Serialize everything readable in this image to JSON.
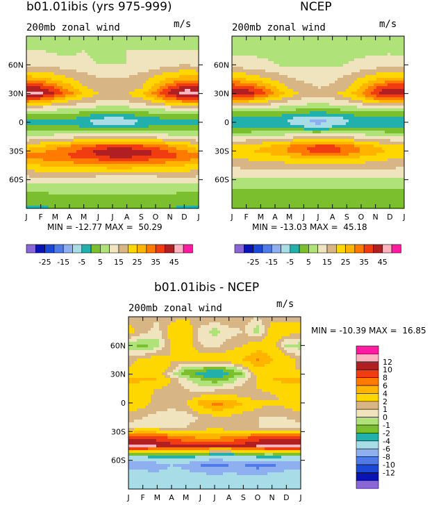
{
  "chart_data": [
    {
      "type": "heatmap",
      "title": "b01.01ibis (yrs 975-999)",
      "subtitle_left": "200mb zonal wind",
      "subtitle_right": "m/s",
      "x_ticks": [
        "J",
        "F",
        "M",
        "A",
        "M",
        "J",
        "J",
        "A",
        "S",
        "O",
        "N",
        "D",
        "J"
      ],
      "y_ticks": [
        "60N",
        "30N",
        "0",
        "30S",
        "60S"
      ],
      "y_tick_values": [
        60,
        30,
        0,
        -30,
        -60
      ],
      "ylim": [
        -90,
        90
      ],
      "stats": "MIN = -12.77 MAX =  50.29",
      "levels": [
        -30,
        -25,
        -20,
        -15,
        -10,
        -5,
        0,
        5,
        10,
        15,
        20,
        25,
        30,
        35,
        40,
        45,
        50
      ],
      "colorbar_labels": [
        "-25",
        "-15",
        "-5",
        "5",
        "15",
        "25",
        "35",
        "45"
      ],
      "colors": [
        "#8a67d6",
        "#0a14b4",
        "#1c48d8",
        "#4f7ae8",
        "#8fb0f0",
        "#a8dce6",
        "#22b0ad",
        "#7bbf2e",
        "#b0e27a",
        "#efe4be",
        "#d8b585",
        "#ffd700",
        "#ffb400",
        "#ff7a00",
        "#f03c10",
        "#b21f22",
        "#ffb3c1",
        "#ff1ca0"
      ],
      "lat_grid": [
        90,
        75,
        60,
        45,
        35,
        30,
        25,
        15,
        5,
        0,
        -5,
        -15,
        -25,
        -30,
        -35,
        -45,
        -55,
        -65,
        -75,
        -90
      ],
      "rows": [
        [
          8,
          8,
          8,
          8,
          8,
          8,
          8,
          8,
          8,
          8,
          8,
          8,
          8
        ],
        [
          10,
          10,
          9,
          9,
          10,
          9,
          9,
          10,
          10,
          10,
          10,
          10,
          10
        ],
        [
          14,
          14,
          13,
          12,
          11,
          10,
          10,
          10,
          11,
          12,
          14,
          15,
          14
        ],
        [
          28,
          27,
          24,
          21,
          18,
          16,
          15,
          16,
          18,
          22,
          26,
          28,
          28
        ],
        [
          43,
          42,
          36,
          28,
          21,
          18,
          16,
          17,
          20,
          28,
          38,
          44,
          43
        ],
        [
          48,
          46,
          40,
          32,
          24,
          20,
          18,
          20,
          24,
          32,
          42,
          48,
          48
        ],
        [
          38,
          36,
          30,
          24,
          20,
          17,
          16,
          17,
          20,
          26,
          34,
          38,
          38
        ],
        [
          14,
          13,
          12,
          11,
          10,
          9,
          9,
          9,
          10,
          11,
          13,
          14,
          14
        ],
        [
          1,
          1,
          2,
          2,
          -2,
          -4,
          -5,
          -4,
          -2,
          0,
          1,
          2,
          1
        ],
        [
          -2,
          -2,
          -1,
          -1,
          -4,
          -8,
          -11,
          -9,
          -5,
          -3,
          -2,
          -2,
          -2
        ],
        [
          1,
          1,
          2,
          1,
          0,
          -2,
          -4,
          -3,
          0,
          1,
          1,
          1,
          1
        ],
        [
          10,
          11,
          12,
          13,
          14,
          14,
          15,
          15,
          14,
          13,
          12,
          11,
          10
        ],
        [
          22,
          24,
          28,
          30,
          34,
          36,
          37,
          37,
          36,
          34,
          30,
          26,
          22
        ],
        [
          27,
          29,
          31,
          33,
          37,
          42,
          44,
          44,
          42,
          39,
          34,
          30,
          27
        ],
        [
          32,
          33,
          35,
          36,
          38,
          40,
          42,
          42,
          41,
          40,
          38,
          35,
          32
        ],
        [
          24,
          25,
          26,
          27,
          28,
          28,
          29,
          29,
          28,
          27,
          26,
          25,
          24
        ],
        [
          16,
          17,
          17,
          17,
          17,
          16,
          16,
          16,
          16,
          16,
          17,
          17,
          16
        ],
        [
          9,
          10,
          10,
          10,
          10,
          9,
          9,
          9,
          9,
          9,
          10,
          10,
          9
        ],
        [
          4,
          4,
          5,
          5,
          5,
          5,
          5,
          5,
          5,
          5,
          5,
          4,
          4
        ],
        [
          -1,
          -1,
          0,
          0,
          0,
          0,
          0,
          0,
          0,
          0,
          0,
          -1,
          -1
        ]
      ]
    },
    {
      "type": "heatmap",
      "title": "NCEP",
      "subtitle_left": "200mb zonal wind",
      "subtitle_right": "m/s",
      "x_ticks": [
        "J",
        "F",
        "M",
        "A",
        "M",
        "J",
        "J",
        "A",
        "S",
        "O",
        "N",
        "D",
        "J"
      ],
      "y_ticks": [
        "60N",
        "30N",
        "0",
        "30S",
        "60S"
      ],
      "y_tick_values": [
        60,
        30,
        0,
        -30,
        -60
      ],
      "ylim": [
        -90,
        90
      ],
      "stats": "MIN = -13.03 MAX =  45.18",
      "levels": [
        -30,
        -25,
        -20,
        -15,
        -10,
        -5,
        0,
        5,
        10,
        15,
        20,
        25,
        30,
        35,
        40,
        45,
        50
      ],
      "colorbar_labels": [
        "-25",
        "-15",
        "-5",
        "5",
        "15",
        "25",
        "35",
        "45"
      ],
      "colors": [
        "#8a67d6",
        "#0a14b4",
        "#1c48d8",
        "#4f7ae8",
        "#8fb0f0",
        "#a8dce6",
        "#22b0ad",
        "#7bbf2e",
        "#b0e27a",
        "#efe4be",
        "#d8b585",
        "#ffd700",
        "#ffb400",
        "#ff7a00",
        "#f03c10",
        "#b21f22",
        "#ffb3c1",
        "#ff1ca0"
      ],
      "lat_grid": [
        90,
        75,
        60,
        45,
        35,
        30,
        25,
        15,
        5,
        0,
        -5,
        -15,
        -25,
        -30,
        -35,
        -45,
        -55,
        -65,
        -75,
        -90
      ],
      "rows": [
        [
          8,
          8,
          8,
          8,
          8,
          8,
          8,
          8,
          8,
          8,
          8,
          8,
          8
        ],
        [
          9,
          9,
          9,
          9,
          9,
          8,
          8,
          9,
          9,
          9,
          9,
          9,
          9
        ],
        [
          12,
          12,
          11,
          10,
          9,
          9,
          9,
          9,
          10,
          11,
          12,
          13,
          12
        ],
        [
          26,
          25,
          22,
          19,
          16,
          14,
          14,
          14,
          17,
          21,
          25,
          26,
          26
        ],
        [
          42,
          40,
          34,
          26,
          20,
          17,
          15,
          16,
          19,
          27,
          36,
          42,
          42
        ],
        [
          44,
          43,
          38,
          30,
          23,
          19,
          17,
          19,
          23,
          30,
          39,
          44,
          44
        ],
        [
          34,
          33,
          28,
          22,
          18,
          15,
          14,
          15,
          18,
          24,
          31,
          34,
          34
        ],
        [
          11,
          11,
          10,
          9,
          8,
          7,
          7,
          7,
          8,
          9,
          10,
          11,
          11
        ],
        [
          -3,
          -3,
          -1,
          -1,
          -4,
          -7,
          -8,
          -7,
          -4,
          -1,
          -1,
          -3,
          -3
        ],
        [
          -5,
          -4,
          -3,
          -3,
          -6,
          -10,
          -12,
          -10,
          -6,
          -3,
          -3,
          -4,
          -5
        ],
        [
          -1,
          -1,
          0,
          0,
          -2,
          -4,
          -6,
          -4,
          -1,
          0,
          0,
          -1,
          -1
        ],
        [
          9,
          10,
          11,
          12,
          13,
          14,
          15,
          15,
          14,
          13,
          11,
          10,
          9
        ],
        [
          22,
          23,
          24,
          26,
          30,
          34,
          36,
          36,
          33,
          28,
          25,
          23,
          22
        ],
        [
          23,
          24,
          26,
          28,
          31,
          35,
          37,
          37,
          35,
          30,
          27,
          24,
          23
        ],
        [
          21,
          22,
          23,
          24,
          26,
          28,
          29,
          29,
          28,
          26,
          24,
          22,
          21
        ],
        [
          16,
          17,
          17,
          17,
          18,
          19,
          19,
          19,
          19,
          18,
          17,
          17,
          16
        ],
        [
          11,
          11,
          12,
          12,
          12,
          12,
          12,
          12,
          12,
          12,
          12,
          11,
          11
        ],
        [
          6,
          6,
          7,
          7,
          7,
          7,
          7,
          7,
          7,
          7,
          7,
          6,
          6
        ],
        [
          3,
          3,
          3,
          3,
          3,
          3,
          3,
          3,
          3,
          3,
          3,
          3,
          3
        ],
        [
          0,
          0,
          0,
          0,
          0,
          0,
          0,
          0,
          0,
          0,
          0,
          0,
          0
        ]
      ]
    },
    {
      "type": "heatmap",
      "title": "b01.01ibis - NCEP",
      "subtitle_left": "200mb zonal wind",
      "subtitle_right": "m/s",
      "x_ticks": [
        "J",
        "F",
        "M",
        "A",
        "M",
        "J",
        "J",
        "A",
        "S",
        "O",
        "N",
        "D",
        "J"
      ],
      "y_ticks": [
        "60N",
        "30N",
        "0",
        "30S",
        "60S"
      ],
      "y_tick_values": [
        60,
        30,
        0,
        -30,
        -60
      ],
      "ylim": [
        -90,
        90
      ],
      "stats": "MIN = -10.39 MAX =  16.85",
      "levels": [
        -14,
        -12,
        -10,
        -8,
        -6,
        -4,
        -2,
        -1,
        0,
        1,
        2,
        4,
        6,
        8,
        10,
        12,
        14
      ],
      "colorbar_labels": [
        "12",
        "10",
        "8",
        "6",
        "4",
        "2",
        "1",
        "0",
        "-1",
        "-2",
        "-4",
        "-6",
        "-8",
        "-10",
        "-12"
      ],
      "colors": [
        "#8a67d6",
        "#0a14b4",
        "#1c48d8",
        "#4f7ae8",
        "#8fb0f0",
        "#a8dce6",
        "#22b0ad",
        "#7bbf2e",
        "#b0e27a",
        "#efe4be",
        "#d8b585",
        "#ffd700",
        "#ffb400",
        "#ff7a00",
        "#f03c10",
        "#b21f22",
        "#ffb3c1",
        "#ff1ca0"
      ],
      "lat_grid": [
        90,
        75,
        60,
        45,
        35,
        30,
        25,
        15,
        5,
        0,
        -5,
        -15,
        -25,
        -30,
        -35,
        -45,
        -55,
        -65,
        -75,
        -90
      ],
      "rows": [
        [
          1.5,
          1.5,
          1.2,
          1.5,
          1.8,
          2,
          2,
          2.1,
          1.5,
          1,
          1.5,
          1.5,
          1.5
        ],
        [
          2.5,
          1.5,
          0.5,
          3,
          3,
          0.5,
          -0.5,
          0.5,
          1,
          -0.5,
          3,
          3,
          2.5
        ],
        [
          -0.5,
          -1.5,
          -0.5,
          2,
          3,
          1,
          0.5,
          1.5,
          2,
          3,
          3,
          -0.5,
          -0.5
        ],
        [
          1.5,
          2.5,
          3,
          2,
          2.5,
          3,
          3,
          3,
          4,
          6,
          4,
          3,
          1.5
        ],
        [
          2,
          3,
          3.5,
          1.5,
          -1,
          -1.5,
          -2,
          -1.5,
          0.5,
          3.5,
          3,
          2,
          2
        ],
        [
          3,
          3.5,
          3,
          0,
          -1.5,
          -2.5,
          -3,
          -2,
          -1,
          3,
          4,
          3,
          3
        ],
        [
          5,
          4.5,
          4,
          2,
          0,
          -1,
          -2,
          -1,
          0.5,
          2,
          4,
          5,
          5
        ],
        [
          3,
          2.5,
          2,
          1.5,
          1,
          0.5,
          0.5,
          1,
          1.5,
          2,
          2.5,
          3,
          3
        ],
        [
          2.5,
          2.5,
          1.5,
          1.5,
          1.2,
          2.5,
          3,
          2.5,
          2,
          1.5,
          1.5,
          2.5,
          2.5
        ],
        [
          3,
          2.5,
          1.5,
          1,
          2,
          5,
          7,
          6,
          4,
          3,
          2.5,
          3,
          3
        ],
        [
          2.5,
          2,
          1.5,
          1,
          1.5,
          3.5,
          5,
          4.5,
          3,
          2,
          1.5,
          2,
          2.5
        ],
        [
          1.5,
          1,
          0.5,
          0.5,
          0.5,
          1,
          1.5,
          1.5,
          1,
          1,
          1,
          1,
          1.5
        ],
        [
          0.5,
          0.5,
          0.5,
          0.5,
          1,
          1.5,
          2,
          1.5,
          1,
          1,
          0.5,
          0.5,
          0.5
        ],
        [
          3,
          4,
          3.5,
          2.5,
          2,
          2,
          2.5,
          2,
          2,
          2.5,
          3,
          3,
          3
        ],
        [
          9,
          9,
          8.5,
          7,
          6,
          5,
          5,
          6,
          7,
          8.5,
          9,
          9,
          9
        ],
        [
          13,
          13,
          12,
          11,
          10,
          10,
          10,
          10,
          11,
          12,
          13,
          13,
          13
        ],
        [
          -4,
          -3.5,
          -3,
          -3,
          -3,
          -3.5,
          -4,
          -4,
          -3.5,
          -3,
          -3,
          -3.5,
          -4
        ],
        [
          -7,
          -7.5,
          -7,
          -6,
          -6.5,
          -8,
          -9,
          -8,
          -8,
          -9,
          -8.5,
          -7,
          -7
        ],
        [
          -4.5,
          -5,
          -5.5,
          -5,
          -5.5,
          -5.5,
          -6,
          -5.5,
          -6,
          -6,
          -5.5,
          -5,
          -4.5
        ],
        [
          -5,
          -5,
          -5,
          -5,
          -5,
          -5,
          -5,
          -5,
          -5,
          -5,
          -5,
          -5,
          -5
        ]
      ]
    }
  ]
}
